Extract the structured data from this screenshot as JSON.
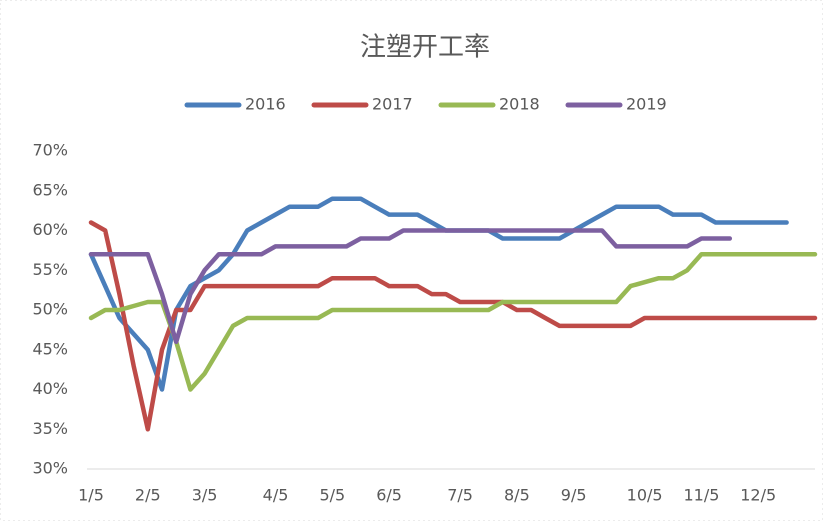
{
  "chart_data": {
    "type": "line",
    "title": "注塑开工率",
    "categories": [
      "1/5",
      null,
      null,
      null,
      "2/5",
      null,
      null,
      null,
      "3/5",
      null,
      null,
      null,
      null,
      "4/5",
      null,
      null,
      null,
      "5/5",
      null,
      null,
      null,
      "6/5",
      null,
      null,
      null,
      null,
      "7/5",
      null,
      null,
      null,
      "8/5",
      null,
      null,
      null,
      "9/5",
      null,
      null,
      null,
      null,
      "10/5",
      null,
      null,
      null,
      "11/5",
      null,
      null,
      null,
      "12/5",
      null,
      null,
      null,
      null
    ],
    "series": [
      {
        "name": "2016",
        "color": "#4a7ebb",
        "values": [
          57,
          53,
          49,
          47,
          45,
          40,
          50,
          53,
          54,
          55,
          57,
          60,
          61,
          62,
          63,
          63,
          63,
          64,
          64,
          64,
          63,
          62,
          62,
          62,
          61,
          60,
          60,
          60,
          60,
          59,
          59,
          59,
          59,
          59,
          60,
          61,
          62,
          63,
          63,
          63,
          63,
          62,
          62,
          62,
          61,
          61,
          61,
          61,
          61,
          61,
          null,
          null
        ]
      },
      {
        "name": "2017",
        "color": "#be4b48",
        "values": [
          61,
          60,
          52,
          43,
          35,
          45,
          50,
          50,
          53,
          53,
          53,
          53,
          53,
          53,
          53,
          53,
          53,
          54,
          54,
          54,
          54,
          53,
          53,
          53,
          52,
          52,
          51,
          51,
          51,
          51,
          50,
          50,
          49,
          48,
          48,
          48,
          48,
          48,
          48,
          49,
          49,
          49,
          49,
          49,
          49,
          49,
          49,
          49,
          49,
          49,
          49,
          49
        ]
      },
      {
        "name": "2018",
        "color": "#98b954",
        "values": [
          49,
          50,
          50,
          50.5,
          51,
          51,
          46,
          40,
          42,
          45,
          48,
          49,
          49,
          49,
          49,
          49,
          49,
          50,
          50,
          50,
          50,
          50,
          50,
          50,
          50,
          50,
          50,
          50,
          50,
          51,
          51,
          51,
          51,
          51,
          51,
          51,
          51,
          51,
          53,
          53.5,
          54,
          54,
          55,
          57,
          57,
          57,
          57,
          57,
          57,
          57,
          57,
          57
        ]
      },
      {
        "name": "2019",
        "color": "#7d60a0",
        "values": [
          57,
          57,
          57,
          57,
          57,
          52,
          46,
          52,
          55,
          57,
          57,
          57,
          57,
          58,
          58,
          58,
          58,
          58,
          58,
          59,
          59,
          59,
          60,
          60,
          60,
          60,
          60,
          60,
          60,
          60,
          60,
          60,
          60,
          60,
          60,
          60,
          60,
          58,
          58,
          58,
          58,
          58,
          58,
          59,
          59,
          59,
          null,
          null,
          null,
          null,
          null,
          null
        ]
      }
    ],
    "ylim": [
      30,
      70
    ],
    "yticks": [
      {
        "value": 30,
        "label": "30%"
      },
      {
        "value": 35,
        "label": "35%"
      },
      {
        "value": 40,
        "label": "40%"
      },
      {
        "value": 45,
        "label": "45%"
      },
      {
        "value": 50,
        "label": "50%"
      },
      {
        "value": 55,
        "label": "55%"
      },
      {
        "value": 60,
        "label": "60%"
      },
      {
        "value": 65,
        "label": "65%"
      },
      {
        "value": 70,
        "label": "70%"
      }
    ],
    "legend": "top"
  }
}
